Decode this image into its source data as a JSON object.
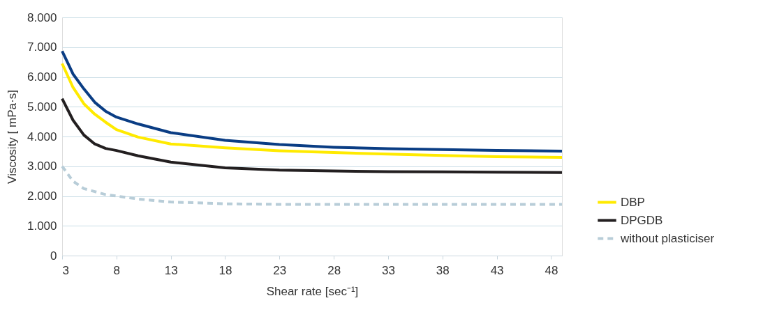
{
  "chart_data": {
    "type": "line",
    "xlabel": "Shear rate [sec⁻¹]",
    "ylabel": "Viscosity [ mPa·s]",
    "xlim": [
      3,
      49
    ],
    "xticks": [
      3,
      8,
      13,
      18,
      23,
      28,
      33,
      38,
      43,
      48
    ],
    "ylim": [
      0,
      8000
    ],
    "yticks": [
      {
        "value": 0,
        "label": "0"
      },
      {
        "value": 1000,
        "label": "1.000"
      },
      {
        "value": 2000,
        "label": "2.000"
      },
      {
        "value": 3000,
        "label": "3.000"
      },
      {
        "value": 4000,
        "label": "4.000"
      },
      {
        "value": 5000,
        "label": "5.000"
      },
      {
        "value": 6000,
        "label": "6.000"
      },
      {
        "value": 7000,
        "label": "7.000"
      },
      {
        "value": 8000,
        "label": "8.000"
      }
    ],
    "grid": "y",
    "legend": "right",
    "marker": "none",
    "x": [
      3,
      4,
      5,
      6,
      7,
      8,
      10,
      13,
      18,
      23,
      28,
      33,
      38,
      43,
      49
    ],
    "series": [
      {
        "color": "#0a3d84",
        "line_style": "solid",
        "values": [
          6870,
          6100,
          5600,
          5150,
          4850,
          4650,
          4420,
          4130,
          3870,
          3730,
          3640,
          3590,
          3560,
          3530,
          3510
        ]
      },
      {
        "name": "DBP",
        "color": "#ffea00",
        "line_style": "solid",
        "values": [
          6450,
          5650,
          5100,
          4750,
          4480,
          4230,
          3980,
          3750,
          3620,
          3520,
          3460,
          3410,
          3360,
          3320,
          3300
        ]
      },
      {
        "name": "DPGDB",
        "color": "#231f20",
        "line_style": "solid",
        "values": [
          5270,
          4550,
          4050,
          3750,
          3600,
          3530,
          3350,
          3140,
          2950,
          2870,
          2840,
          2820,
          2810,
          2800,
          2790
        ]
      },
      {
        "name": "without plasticiser",
        "color": "#b8cdd8",
        "line_style": "dashed",
        "values": [
          3000,
          2500,
          2250,
          2150,
          2050,
          2000,
          1900,
          1800,
          1740,
          1720,
          1720,
          1720,
          1720,
          1720,
          1720
        ]
      }
    ]
  }
}
